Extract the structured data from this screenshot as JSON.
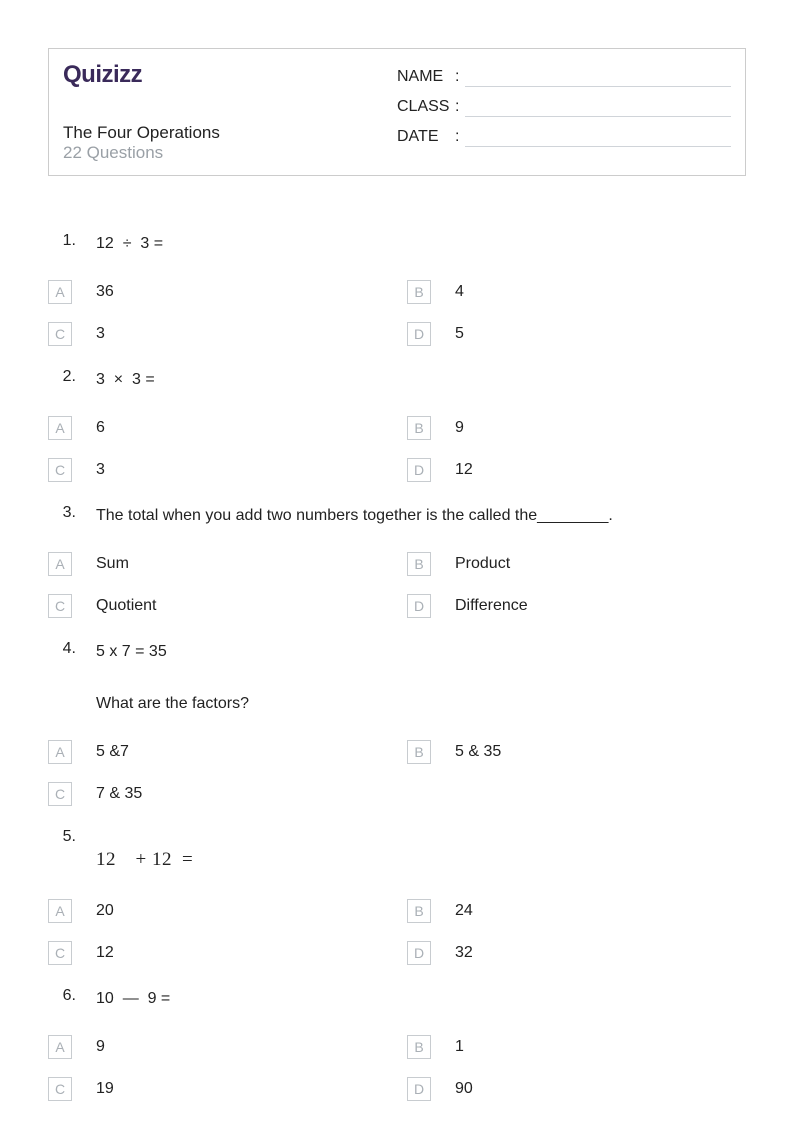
{
  "brand": "Quizizz",
  "quiz_title": "The Four Operations",
  "quiz_subtitle": "22 Questions",
  "fields": {
    "name": "NAME",
    "class": "CLASS",
    "date": "DATE"
  },
  "option_letters": [
    "A",
    "B",
    "C",
    "D"
  ],
  "colors": {
    "text": "#222222",
    "muted": "#9aa0a6",
    "border": "#cccccc",
    "option_border": "#c8ccd0",
    "option_letter": "#aab0b6",
    "field_line": "#d0d4d9",
    "logo": "#3a2a5a",
    "background": "#ffffff"
  },
  "questions": [
    {
      "num": "1.",
      "text_html": "12  ÷  3 =",
      "options": [
        {
          "letter": "A",
          "text": "36"
        },
        {
          "letter": "B",
          "text": "4"
        },
        {
          "letter": "C",
          "text": "3"
        },
        {
          "letter": "D",
          "text": "5"
        }
      ]
    },
    {
      "num": "2.",
      "text_html": "3  ×  3 =",
      "options": [
        {
          "letter": "A",
          "text": "6"
        },
        {
          "letter": "B",
          "text": "9"
        },
        {
          "letter": "C",
          "text": "3"
        },
        {
          "letter": "D",
          "text": "12"
        }
      ]
    },
    {
      "num": "3.",
      "text_html": "The total when you add two numbers together is the called the________.",
      "options": [
        {
          "letter": "A",
          "text": "Sum"
        },
        {
          "letter": "B",
          "text": "Product"
        },
        {
          "letter": "C",
          "text": "Quotient"
        },
        {
          "letter": "D",
          "text": "Difference"
        }
      ]
    },
    {
      "num": "4.",
      "text_html": "5 x 7 = 35",
      "text_line2": "What are the factors?",
      "options": [
        {
          "letter": "A",
          "text": "5 &7"
        },
        {
          "letter": "B",
          "text": "5 & 35"
        },
        {
          "letter": "C",
          "text": "7 & 35"
        }
      ]
    },
    {
      "num": "5.",
      "math_serif": "12 + 12 =",
      "options": [
        {
          "letter": "A",
          "text": "20"
        },
        {
          "letter": "B",
          "text": "24"
        },
        {
          "letter": "C",
          "text": "12"
        },
        {
          "letter": "D",
          "text": "32"
        }
      ]
    },
    {
      "num": "6.",
      "text_html": "10  —  9 =",
      "options": [
        {
          "letter": "A",
          "text": "9"
        },
        {
          "letter": "B",
          "text": "1"
        },
        {
          "letter": "C",
          "text": "19"
        },
        {
          "letter": "D",
          "text": "90"
        }
      ]
    }
  ]
}
